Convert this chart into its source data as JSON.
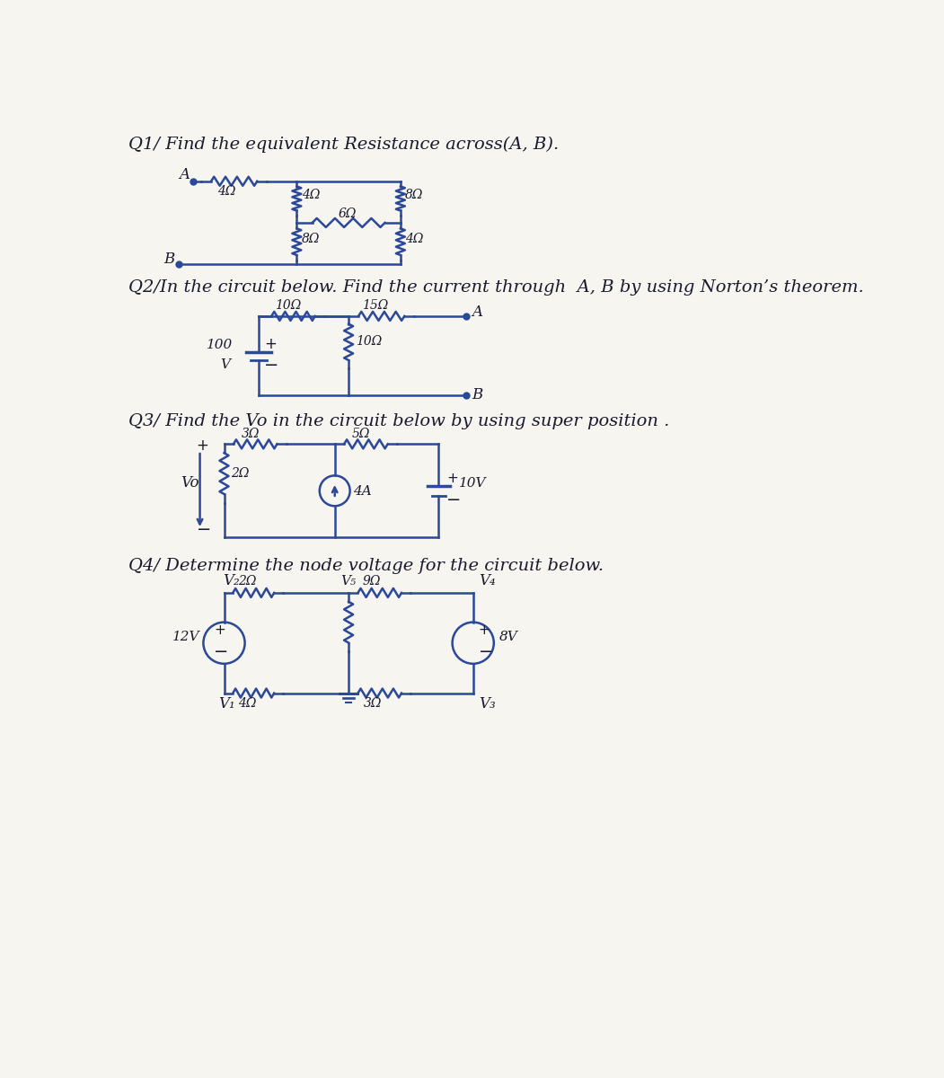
{
  "bg_color": "#f5f2ec",
  "line_color": "#2b4899",
  "text_color": "#1a1a2e",
  "q1_title": "Q1/ Find the equivalent Resistance across(A, B).",
  "q2_title": "Q2/In the circuit below. Find the current through  A, B by using Norton’s theorem.",
  "q3_title": "Q3/ Find the Vo in the circuit below by using super position .",
  "q4_title": "Q4/ Determine the node voltage for the circuit below.",
  "font_size_q": 14,
  "lc": "#2b4899",
  "paper_color": "#f7f5f0"
}
